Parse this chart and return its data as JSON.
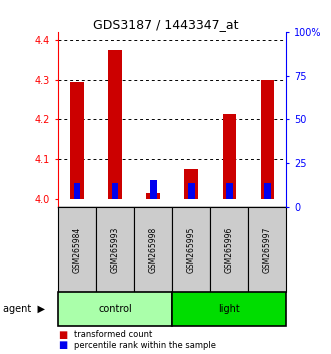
{
  "title": "GDS3187 / 1443347_at",
  "samples": [
    "GSM265984",
    "GSM265993",
    "GSM265998",
    "GSM265995",
    "GSM265996",
    "GSM265997"
  ],
  "transformed_counts": [
    4.295,
    4.375,
    4.015,
    4.075,
    4.215,
    4.3
  ],
  "percentile_ranks": [
    10,
    10,
    12,
    10,
    10,
    10
  ],
  "ylim_left": [
    3.98,
    4.42
  ],
  "ylim_right": [
    0,
    100
  ],
  "yticks_left": [
    4.0,
    4.1,
    4.2,
    4.3,
    4.4
  ],
  "yticks_right": [
    0,
    25,
    50,
    75,
    100
  ],
  "yticklabels_right": [
    "0",
    "25",
    "50",
    "75",
    "100%"
  ],
  "bar_base": 4.0,
  "red_color": "#CC0000",
  "blue_color": "#0000EE",
  "sample_box_color": "#CCCCCC",
  "control_color": "#AAFFAA",
  "light_color": "#00DD00",
  "agent_arrow": "▶",
  "legend_red": "transformed count",
  "legend_blue": "percentile rank within the sample"
}
